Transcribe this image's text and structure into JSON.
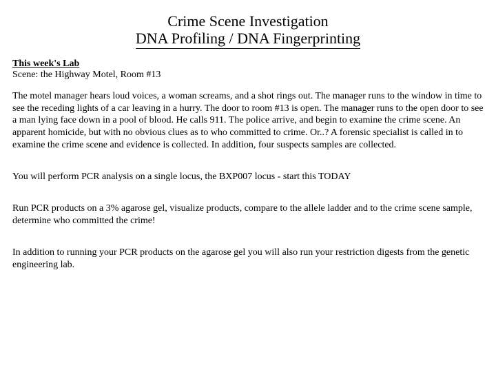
{
  "title": {
    "line1": "Crime Scene Investigation",
    "line2": "DNA Profiling / DNA Fingerprinting"
  },
  "section_label": "This week's Lab",
  "scene_line": "Scene: the Highway Motel, Room #13",
  "paragraphs": {
    "p1": "The motel manager hears loud voices, a woman screams, and a shot rings out.  The manager runs to the window in time to see the receding lights of a car leaving in a hurry.  The door to room #13 is open. The manager runs to the open door to see a man lying face down in a pool of blood.  He calls 911.  The police arrive, and begin to examine the crime scene.  An apparent homicide, but with no obvious clues as to who committed to crime.  Or..?  A forensic specialist is called in to examine the crime scene and evidence is collected.  In addition, four suspects samples are collected.",
    "p2": "You will perform PCR analysis on a single locus, the BXP007 locus - start this TODAY",
    "p3": "Run PCR products on a 3% agarose gel, visualize products, compare to the allele ladder and to the crime scene sample, determine who committed the crime!",
    "p4": "In addition to running your PCR products on the agarose gel you will also run your restriction digests from the genetic engineering lab."
  }
}
